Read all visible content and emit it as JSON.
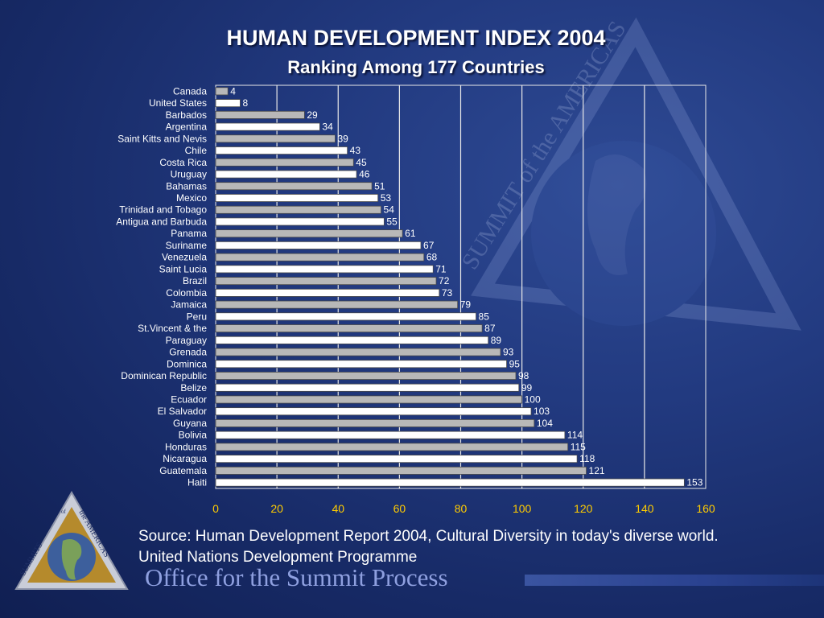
{
  "header": {
    "title": "HUMAN DEVELOPMENT INDEX 2004",
    "subtitle": "Ranking Among 177 Countries"
  },
  "footer": {
    "source": "Source: Human Development Report 2004, Cultural Diversity in today's diverse world. United Nations Development Programme",
    "office": "Office for the Summit Process"
  },
  "logo": {
    "text_left": "SUMMITS",
    "text_of": "of",
    "text_right": "the AMERICAS"
  },
  "watermark": {
    "text": "SUMMIT of the AMERICAS"
  },
  "colors": {
    "background": "#1a2e6e",
    "bar_white": "#ffffff",
    "bar_gray": "#b8b8b8",
    "axis_label": "#ffcc00",
    "grid": "#e8e8e8"
  },
  "chart_data": {
    "type": "bar",
    "orientation": "horizontal",
    "categories": [
      "Canada",
      "United States",
      "Barbados",
      "Argentina",
      "Saint Kitts and Nevis",
      "Chile",
      "Costa Rica",
      "Uruguay",
      "Bahamas",
      "Mexico",
      "Trinidad and Tobago",
      "Antigua and Barbuda",
      "Panama",
      "Suriname",
      "Venezuela",
      "Saint Lucia",
      "Brazil",
      "Colombia",
      "Jamaica",
      "Peru",
      "St.Vincent & the",
      "Paraguay",
      "Grenada",
      "Dominica",
      "Dominican Republic",
      "Belize",
      "Ecuador",
      "El Salvador",
      "Guyana",
      "Bolivia",
      "Honduras",
      "Nicaragua",
      "Guatemala",
      "Haiti"
    ],
    "values": [
      4,
      8,
      29,
      34,
      39,
      43,
      45,
      46,
      51,
      53,
      54,
      55,
      61,
      67,
      68,
      71,
      72,
      73,
      79,
      85,
      87,
      89,
      93,
      95,
      98,
      99,
      100,
      103,
      104,
      114,
      115,
      118,
      121,
      153
    ],
    "bar_colors": [
      "gray",
      "white",
      "gray",
      "white",
      "gray",
      "white",
      "gray",
      "white",
      "gray",
      "white",
      "gray",
      "white",
      "gray",
      "white",
      "gray",
      "white",
      "gray",
      "white",
      "gray",
      "white",
      "gray",
      "white",
      "gray",
      "white",
      "gray",
      "white",
      "gray",
      "white",
      "gray",
      "white",
      "gray",
      "white",
      "gray",
      "white"
    ],
    "xlim": [
      0,
      160
    ],
    "xticks": [
      0,
      20,
      40,
      60,
      80,
      100,
      120,
      140,
      160
    ],
    "grid": true,
    "legend": "none"
  }
}
